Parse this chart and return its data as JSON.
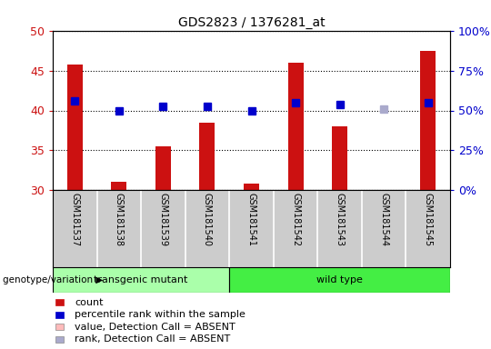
{
  "title": "GDS2823 / 1376281_at",
  "samples": [
    "GSM181537",
    "GSM181538",
    "GSM181539",
    "GSM181540",
    "GSM181541",
    "GSM181542",
    "GSM181543",
    "GSM181544",
    "GSM181545"
  ],
  "count_values": [
    45.8,
    31.0,
    35.5,
    38.5,
    30.8,
    46.0,
    38.0,
    30.0,
    47.5
  ],
  "rank_values": [
    41.2,
    40.0,
    40.5,
    40.5,
    40.0,
    41.0,
    40.8,
    40.2,
    41.0
  ],
  "absent_flags": [
    false,
    false,
    false,
    false,
    false,
    false,
    false,
    true,
    false
  ],
  "ylim_left": [
    30,
    50
  ],
  "ylim_right": [
    0,
    100
  ],
  "yticks_left": [
    30,
    35,
    40,
    45,
    50
  ],
  "yticks_right": [
    0,
    25,
    50,
    75,
    100
  ],
  "bar_color_present": "#cc1111",
  "bar_color_absent": "#ffbbbb",
  "rank_color_present": "#0000cc",
  "rank_color_absent": "#aaaacc",
  "group1_label": "transgenic mutant",
  "group2_label": "wild type",
  "group1_color": "#aaffaa",
  "group2_color": "#44ee44",
  "group1_indices": [
    0,
    1,
    2,
    3
  ],
  "group2_indices": [
    4,
    5,
    6,
    7,
    8
  ],
  "legend_items": [
    {
      "label": "count",
      "color": "#cc1111"
    },
    {
      "label": "percentile rank within the sample",
      "color": "#0000cc"
    },
    {
      "label": "value, Detection Call = ABSENT",
      "color": "#ffbbbb"
    },
    {
      "label": "rank, Detection Call = ABSENT",
      "color": "#aaaacc"
    }
  ],
  "genotype_label": "genotype/variation",
  "left_ytick_color": "#cc1111",
  "right_ytick_color": "#0000cc",
  "bar_width": 0.35,
  "rank_marker_size": 6
}
